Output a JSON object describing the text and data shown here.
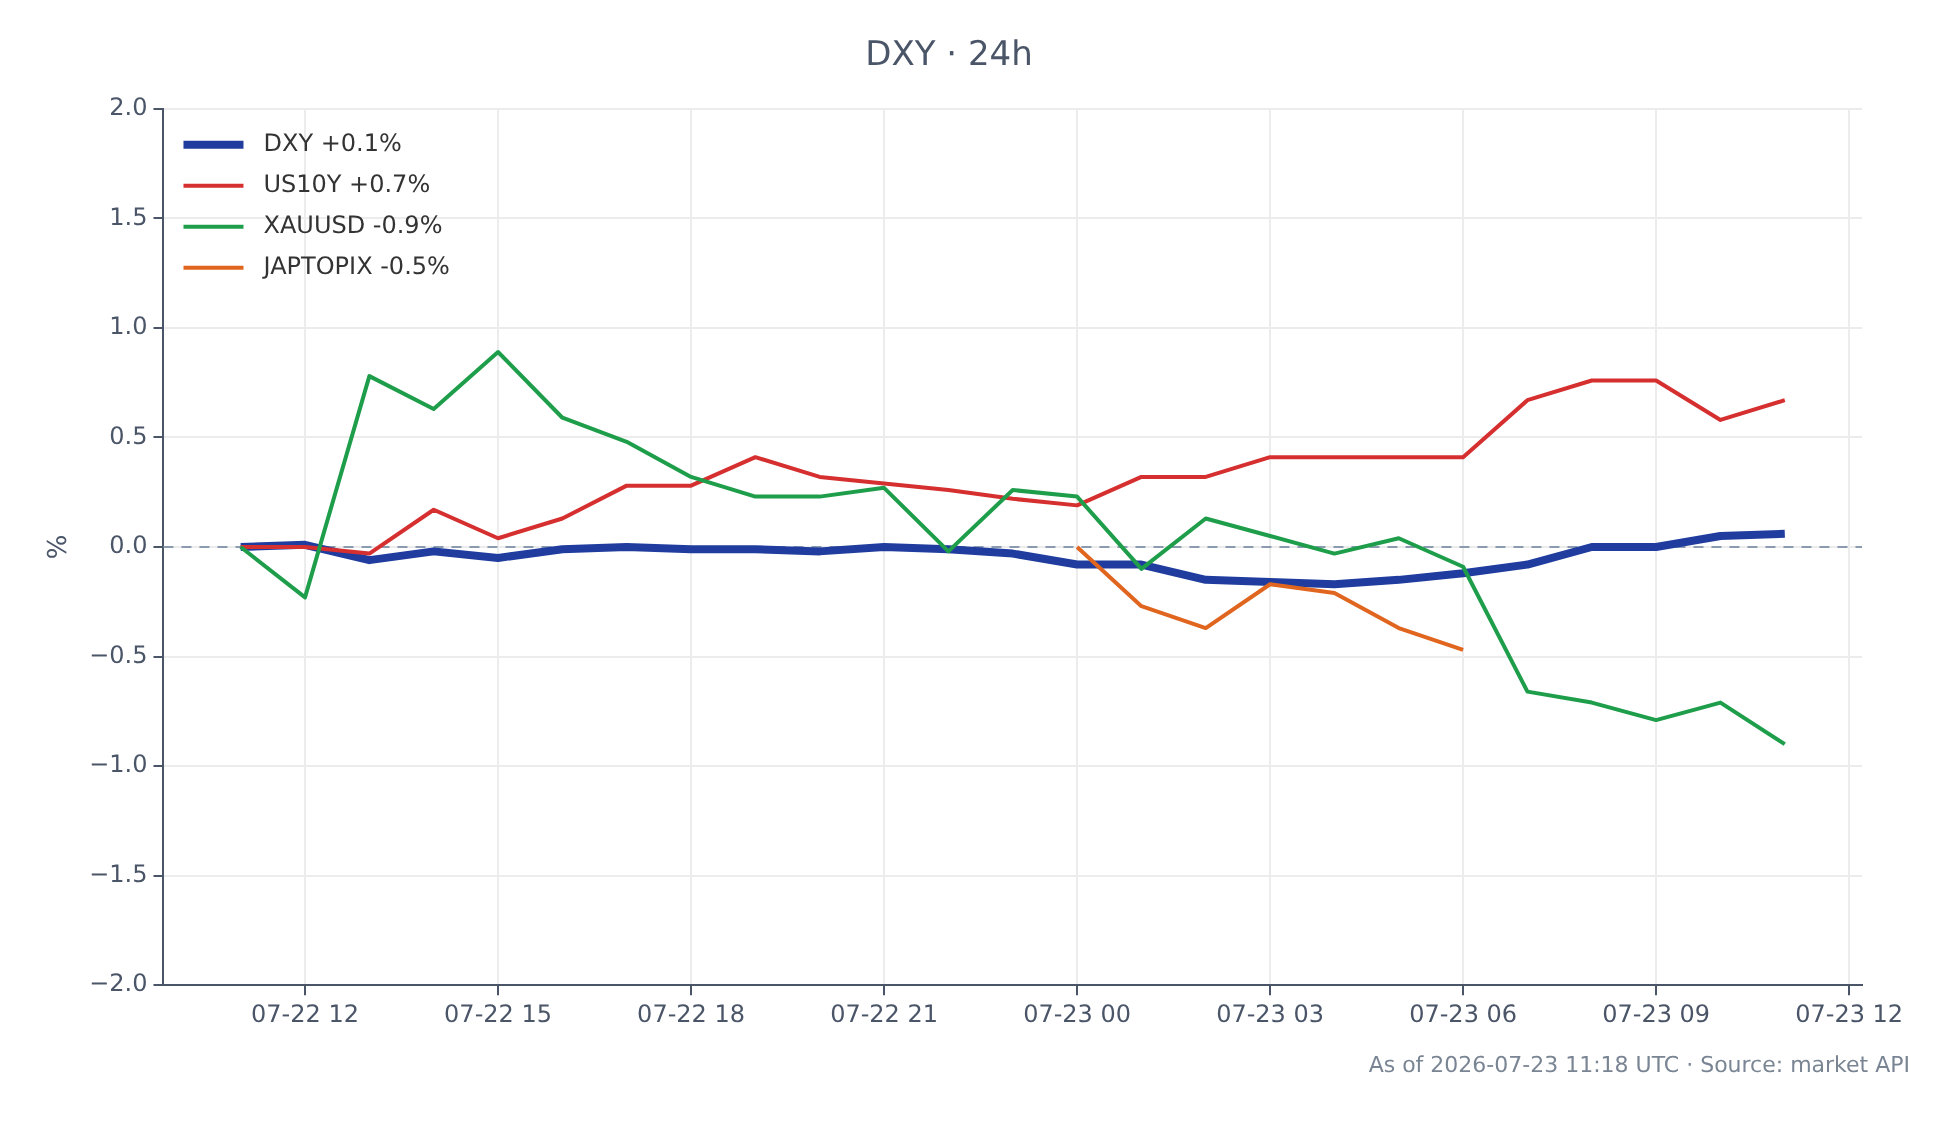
{
  "chart_data": {
    "type": "line",
    "title": "DXY · 24h",
    "ylabel": "%",
    "x": [
      "2026-07-22T11:00",
      "2026-07-22T12:00",
      "2026-07-22T13:00",
      "2026-07-22T14:00",
      "2026-07-22T15:00",
      "2026-07-22T16:00",
      "2026-07-22T17:00",
      "2026-07-22T18:00",
      "2026-07-22T19:00",
      "2026-07-22T20:00",
      "2026-07-22T21:00",
      "2026-07-22T22:00",
      "2026-07-22T23:00",
      "2026-07-23T00:00",
      "2026-07-23T01:00",
      "2026-07-23T02:00",
      "2026-07-23T03:00",
      "2026-07-23T04:00",
      "2026-07-23T05:00",
      "2026-07-23T06:00",
      "2026-07-23T07:00",
      "2026-07-23T08:00",
      "2026-07-23T09:00",
      "2026-07-23T10:00",
      "2026-07-23T11:00"
    ],
    "series": [
      {
        "name": "DXY +0.1%",
        "color": "#1f3c9e",
        "values": [
          0,
          0.01,
          -0.06,
          -0.02,
          -0.05,
          -0.01,
          0,
          -0.01,
          -0.01,
          -0.02,
          0,
          -0.01,
          -0.03,
          -0.08,
          -0.08,
          -0.15,
          -0.16,
          -0.17,
          -0.15,
          -0.12,
          -0.08,
          0,
          0,
          0.05,
          0.06
        ]
      },
      {
        "name": "US10Y +0.7%",
        "color": "#d62f2f",
        "values": [
          0,
          0,
          -0.03,
          0.17,
          0.04,
          0.13,
          0.28,
          0.28,
          0.41,
          0.32,
          0.29,
          0.26,
          0.22,
          0.19,
          0.32,
          0.32,
          0.41,
          0.41,
          0.41,
          0.41,
          0.67,
          0.76,
          0.76,
          0.58,
          0.67
        ]
      },
      {
        "name": "XAUUSD -0.9%",
        "color": "#1e9e4a",
        "values": [
          0,
          -0.23,
          0.78,
          0.63,
          0.89,
          0.59,
          0.48,
          0.32,
          0.23,
          0.23,
          0.27,
          -0.02,
          0.26,
          0.23,
          -0.1,
          0.13,
          0.05,
          -0.03,
          0.04,
          -0.09,
          -0.66,
          -0.71,
          -0.79,
          -0.71,
          -0.9
        ]
      },
      {
        "name": "JAPTOPIX -0.5%",
        "color": "#e0661f",
        "values": [
          null,
          null,
          null,
          null,
          null,
          null,
          null,
          null,
          null,
          null,
          null,
          null,
          null,
          0,
          -0.27,
          -0.37,
          -0.17,
          -0.21,
          -0.37,
          -0.47,
          null,
          null,
          null,
          null,
          null
        ]
      }
    ],
    "xlim": [
      "2026-07-22T09:48",
      "2026-07-23T12:12"
    ],
    "xticks": [
      {
        "value": "2026-07-22T12:00",
        "label": "07-22 12"
      },
      {
        "value": "2026-07-22T15:00",
        "label": "07-22 15"
      },
      {
        "value": "2026-07-22T18:00",
        "label": "07-22 18"
      },
      {
        "value": "2026-07-22T21:00",
        "label": "07-22 21"
      },
      {
        "value": "2026-07-23T00:00",
        "label": "07-23 00"
      },
      {
        "value": "2026-07-23T03:00",
        "label": "07-23 03"
      },
      {
        "value": "2026-07-23T06:00",
        "label": "07-23 06"
      },
      {
        "value": "2026-07-23T09:00",
        "label": "07-23 09"
      },
      {
        "value": "2026-07-23T12:00",
        "label": "07-23 12"
      }
    ],
    "ylim": [
      -2,
      2
    ],
    "yticks": [
      {
        "value": -2,
        "label": "−2.0"
      },
      {
        "value": -1.5,
        "label": "−1.5"
      },
      {
        "value": -1,
        "label": "−1.0"
      },
      {
        "value": -0.5,
        "label": "−0.5"
      },
      {
        "value": 0,
        "label": "0.0"
      },
      {
        "value": 0.5,
        "label": "0.5"
      },
      {
        "value": 1,
        "label": "1.0"
      },
      {
        "value": 1.5,
        "label": "1.5"
      },
      {
        "value": 2,
        "label": "2.0"
      }
    ],
    "ref_lines": [
      {
        "axis": "y",
        "value": 0,
        "color": "#8a9bb0",
        "line_style": "dashed"
      }
    ],
    "grid": true,
    "legend": "top left",
    "marker": "none",
    "line_style": "solid",
    "annotations": [
      "As of 2026-07-23 11:18 UTC · Source: market API"
    ]
  }
}
